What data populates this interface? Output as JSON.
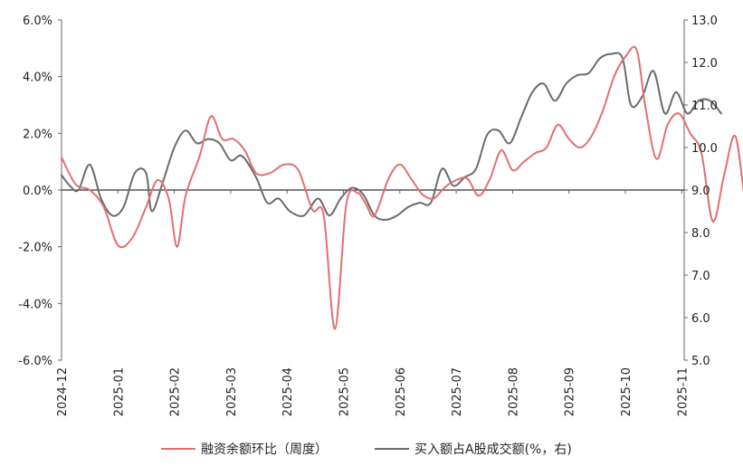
{
  "chart_data": {
    "type": "line",
    "x_labels": [
      "2024-12",
      "2025-01",
      "2025-02",
      "2025-03",
      "2025-04",
      "2025-05",
      "2025-06",
      "2025-07",
      "2025-08",
      "2025-09",
      "2025-10",
      "2025-11"
    ],
    "left_axis": {
      "ylim": [
        -6,
        6
      ],
      "ticks": [
        "-6.0%",
        "-4.0%",
        "-2.0%",
        "0.0%",
        "2.0%",
        "4.0%",
        "6.0%"
      ]
    },
    "right_axis": {
      "ylim": [
        5,
        13
      ],
      "ticks": [
        "5.0",
        "6.0",
        "7.0",
        "8.0",
        "9.0",
        "10.0",
        "11.0",
        "12.0",
        "13.0"
      ]
    },
    "grid": false,
    "legend_position": "bottom",
    "series": [
      {
        "name": "融资余额环比（周度）",
        "axis": "left",
        "color": "#e07070",
        "points": [
          [
            0.0,
            1.15
          ],
          [
            0.25,
            0.2
          ],
          [
            0.5,
            0.0
          ],
          [
            0.75,
            -0.6
          ],
          [
            1.0,
            -1.95
          ],
          [
            1.25,
            -1.7
          ],
          [
            1.5,
            -0.6
          ],
          [
            1.7,
            0.35
          ],
          [
            1.9,
            -0.3
          ],
          [
            2.05,
            -2.0
          ],
          [
            2.2,
            -0.2
          ],
          [
            2.45,
            1.2
          ],
          [
            2.65,
            2.6
          ],
          [
            2.85,
            1.8
          ],
          [
            3.05,
            1.8
          ],
          [
            3.25,
            1.4
          ],
          [
            3.45,
            0.6
          ],
          [
            3.7,
            0.6
          ],
          [
            3.95,
            0.9
          ],
          [
            4.2,
            0.7
          ],
          [
            4.45,
            -0.7
          ],
          [
            4.65,
            -0.9
          ],
          [
            4.85,
            -4.9
          ],
          [
            5.05,
            -0.5
          ],
          [
            5.25,
            -0.1
          ],
          [
            5.4,
            -0.5
          ],
          [
            5.55,
            -0.9
          ],
          [
            5.8,
            0.4
          ],
          [
            6.0,
            0.9
          ],
          [
            6.2,
            0.4
          ],
          [
            6.4,
            -0.15
          ],
          [
            6.6,
            -0.3
          ],
          [
            6.8,
            0.1
          ],
          [
            7.0,
            0.35
          ],
          [
            7.2,
            0.4
          ],
          [
            7.4,
            -0.2
          ],
          [
            7.6,
            0.4
          ],
          [
            7.8,
            1.4
          ],
          [
            8.0,
            0.7
          ],
          [
            8.2,
            1.0
          ],
          [
            8.4,
            1.3
          ],
          [
            8.6,
            1.5
          ],
          [
            8.8,
            2.3
          ],
          [
            9.0,
            1.8
          ],
          [
            9.2,
            1.5
          ],
          [
            9.4,
            1.9
          ],
          [
            9.6,
            2.8
          ],
          [
            9.8,
            4.0
          ],
          [
            10.0,
            4.7
          ],
          [
            10.2,
            4.95
          ],
          [
            10.35,
            3.0
          ],
          [
            10.55,
            1.1
          ],
          [
            10.75,
            2.3
          ],
          [
            10.95,
            2.7
          ],
          [
            11.15,
            2.0
          ],
          [
            11.35,
            1.3
          ],
          [
            11.55,
            -1.1
          ],
          [
            11.75,
            0.5
          ],
          [
            11.95,
            1.9
          ],
          [
            12.15,
            -0.5
          ],
          [
            12.35,
            0.4
          ],
          [
            12.55,
            1.2
          ],
          [
            12.75,
            1.0
          ],
          [
            12.95,
            0.3
          ],
          [
            13.15,
            0.3
          ],
          [
            13.3,
            0.5
          ]
        ]
      },
      {
        "name": "买入额占A股成交额(%，右)",
        "axis": "right",
        "color": "#6b6b6b",
        "points": [
          [
            0.0,
            9.35
          ],
          [
            0.15,
            9.1
          ],
          [
            0.3,
            9.0
          ],
          [
            0.5,
            9.6
          ],
          [
            0.7,
            8.8
          ],
          [
            0.9,
            8.4
          ],
          [
            1.1,
            8.6
          ],
          [
            1.3,
            9.4
          ],
          [
            1.5,
            9.4
          ],
          [
            1.6,
            8.5
          ],
          [
            1.8,
            9.2
          ],
          [
            2.0,
            10.0
          ],
          [
            2.2,
            10.4
          ],
          [
            2.4,
            10.1
          ],
          [
            2.6,
            10.2
          ],
          [
            2.8,
            10.1
          ],
          [
            3.0,
            9.7
          ],
          [
            3.2,
            9.8
          ],
          [
            3.45,
            9.3
          ],
          [
            3.65,
            8.7
          ],
          [
            3.85,
            8.8
          ],
          [
            4.05,
            8.5
          ],
          [
            4.3,
            8.4
          ],
          [
            4.55,
            8.8
          ],
          [
            4.75,
            8.4
          ],
          [
            4.95,
            8.8
          ],
          [
            5.15,
            9.05
          ],
          [
            5.35,
            8.9
          ],
          [
            5.55,
            8.4
          ],
          [
            5.75,
            8.3
          ],
          [
            5.95,
            8.4
          ],
          [
            6.15,
            8.6
          ],
          [
            6.35,
            8.7
          ],
          [
            6.55,
            8.7
          ],
          [
            6.75,
            9.5
          ],
          [
            6.95,
            9.1
          ],
          [
            7.15,
            9.3
          ],
          [
            7.35,
            9.5
          ],
          [
            7.55,
            10.3
          ],
          [
            7.75,
            10.4
          ],
          [
            7.95,
            10.1
          ],
          [
            8.15,
            10.7
          ],
          [
            8.35,
            11.3
          ],
          [
            8.55,
            11.5
          ],
          [
            8.75,
            11.1
          ],
          [
            8.95,
            11.5
          ],
          [
            9.15,
            11.7
          ],
          [
            9.35,
            11.75
          ],
          [
            9.55,
            12.1
          ],
          [
            9.75,
            12.2
          ],
          [
            9.95,
            12.1
          ],
          [
            10.1,
            11.0
          ],
          [
            10.3,
            11.2
          ],
          [
            10.5,
            11.8
          ],
          [
            10.7,
            10.8
          ],
          [
            10.9,
            11.3
          ],
          [
            11.1,
            10.8
          ],
          [
            11.3,
            11.1
          ],
          [
            11.5,
            11.1
          ],
          [
            11.7,
            10.8
          ]
        ]
      }
    ]
  }
}
